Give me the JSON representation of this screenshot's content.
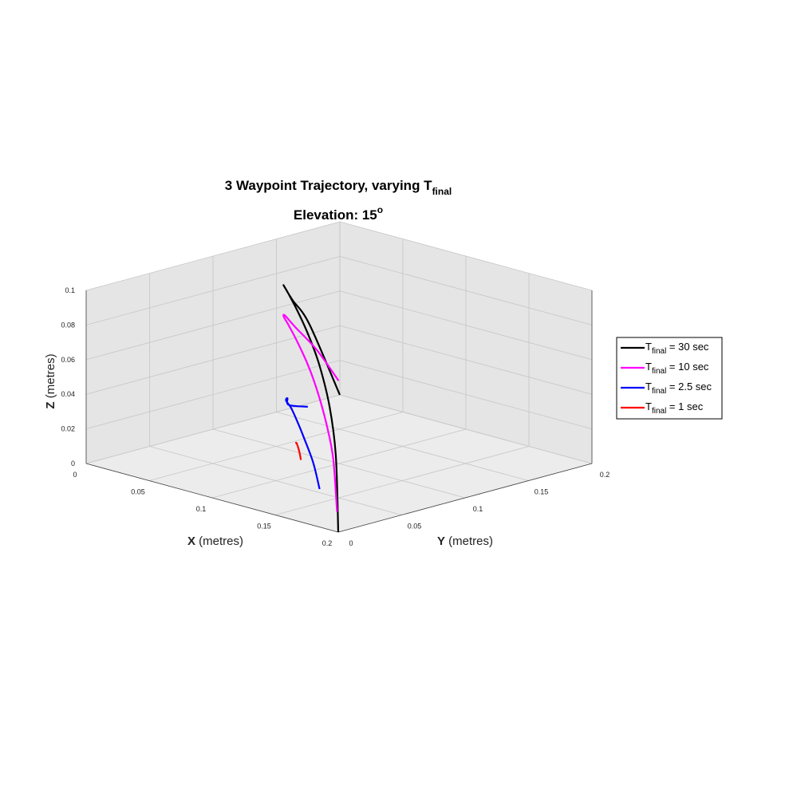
{
  "chart_data": {
    "type": "line3d",
    "title": "3 Waypoint Trajectory, varying T",
    "title_subscript": "final",
    "subtitle_prefix": "Elevation: 15",
    "subtitle_superscript": "o",
    "xlabel_var": "X",
    "xlabel_unit": " (metres)",
    "ylabel_var": "Y",
    "ylabel_unit": " (metres)",
    "zlabel_var": "Z",
    "zlabel_unit": " (metres)",
    "xlim": [
      0,
      0.2
    ],
    "ylim": [
      0,
      0.2
    ],
    "zlim": [
      0,
      0.1
    ],
    "x_ticks": [
      "0",
      "0.05",
      "0.1",
      "0.15",
      "0.2"
    ],
    "y_ticks": [
      "0",
      "0.05",
      "0.1",
      "0.15",
      "0.2"
    ],
    "z_ticks": [
      "0",
      "0.02",
      "0.04",
      "0.06",
      "0.08",
      "0.1"
    ],
    "grid": true,
    "view": {
      "azimuth": 45,
      "elevation": 15
    },
    "legend_position": "right",
    "series": [
      {
        "name_main": "T",
        "name_sub": "final",
        "name_rest": " = 30 sec",
        "color": "#000000",
        "points": [
          [
            0.2,
            0,
            0
          ],
          [
            0.195,
            0.003,
            0.043
          ],
          [
            0.18,
            0.013,
            0.066
          ],
          [
            0.157,
            0.028,
            0.082
          ],
          [
            0.13,
            0.046,
            0.091
          ],
          [
            0.1,
            0.067,
            0.095
          ],
          [
            0.07,
            0.09,
            0.094
          ],
          [
            0.043,
            0.113,
            0.089
          ],
          [
            0.022,
            0.135,
            0.079
          ],
          [
            0.008,
            0.155,
            0.065
          ],
          [
            0.001,
            0.175,
            0.046
          ],
          [
            0,
            0.2,
            0
          ]
        ]
      },
      {
        "name_main": "T",
        "name_sub": "final",
        "name_rest": " = 10 sec",
        "color": "#ff00ff",
        "points": [
          [
            0.195,
            0.004,
            0.01
          ],
          [
            0.188,
            0.008,
            0.038
          ],
          [
            0.175,
            0.016,
            0.053
          ],
          [
            0.155,
            0.029,
            0.065
          ],
          [
            0.13,
            0.046,
            0.073
          ],
          [
            0.1,
            0.067,
            0.077
          ],
          [
            0.07,
            0.09,
            0.076
          ],
          [
            0.043,
            0.113,
            0.071
          ],
          [
            0.022,
            0.135,
            0.063
          ],
          [
            0.01,
            0.155,
            0.05
          ],
          [
            0.004,
            0.178,
            0.031
          ],
          [
            0.004,
            0.195,
            0.01
          ]
        ]
      },
      {
        "name_main": "T",
        "name_sub": "final",
        "name_rest": " = 2.5 sec",
        "color": "#0000ff",
        "points": [
          [
            0.155,
            0.03,
            0.01
          ],
          [
            0.14,
            0.04,
            0.02
          ],
          [
            0.122,
            0.051,
            0.028
          ],
          [
            0.1,
            0.067,
            0.031
          ],
          [
            0.078,
            0.084,
            0.031
          ],
          [
            0.058,
            0.1,
            0.028
          ],
          [
            0.04,
            0.119,
            0.022
          ],
          [
            0.03,
            0.13,
            0.014
          ],
          [
            0.03,
            0.145,
            0.01
          ]
        ]
      },
      {
        "name_main": "T",
        "name_sub": "final",
        "name_rest": " = 1 sec",
        "color": "#ff0000",
        "points": [
          [
            0.11,
            0.06,
            0.012
          ],
          [
            0.105,
            0.064,
            0.014
          ],
          [
            0.1,
            0.068,
            0.015
          ],
          [
            0.094,
            0.073,
            0.015
          ],
          [
            0.088,
            0.078,
            0.014
          ],
          [
            0.085,
            0.082,
            0.012
          ]
        ]
      }
    ]
  }
}
